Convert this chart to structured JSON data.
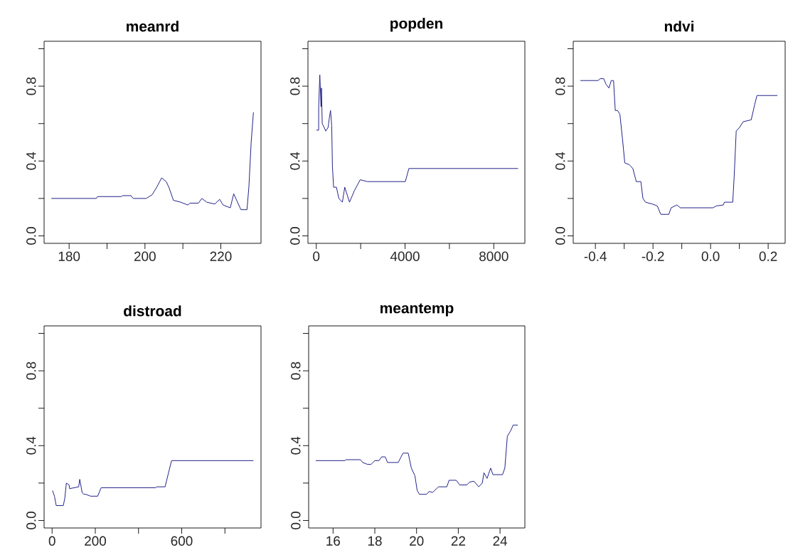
{
  "chart_data": [
    {
      "type": "line",
      "title": "meanrd",
      "color": "#22228a",
      "xlim": [
        173.4,
        230.6
      ],
      "ylim": [
        -0.04,
        1.04
      ],
      "xticks": [
        180,
        {
          "value": 190,
          "label": null
        },
        200,
        {
          "value": 210,
          "label": null
        },
        220
      ],
      "yticks": [
        {
          "value": 0,
          "label": "0.0"
        },
        {
          "value": 0.2,
          "label": null
        },
        {
          "value": 0.4,
          "label": "0.4"
        },
        {
          "value": 0.6,
          "label": null
        },
        {
          "value": 0.8,
          "label": "0.8"
        },
        {
          "value": 1.0,
          "label": null
        }
      ],
      "x": [
        175.3,
        187.2,
        187.5,
        193.8,
        194.1,
        196.3,
        196.9,
        198.8,
        200.3,
        201.9,
        203.1,
        204.4,
        205.6,
        206.3,
        207.5,
        209.4,
        211.3,
        211.9,
        214.1,
        215.0,
        216.3,
        218.4,
        219.7,
        220.6,
        222.5,
        223.4,
        224.4,
        225.3,
        226.9,
        227.4,
        228.0,
        228.6
      ],
      "values": [
        0.2,
        0.2,
        0.21,
        0.21,
        0.215,
        0.215,
        0.2,
        0.2,
        0.2,
        0.22,
        0.26,
        0.31,
        0.29,
        0.26,
        0.19,
        0.18,
        0.165,
        0.175,
        0.175,
        0.2,
        0.18,
        0.17,
        0.195,
        0.165,
        0.15,
        0.225,
        0.18,
        0.14,
        0.14,
        0.26,
        0.5,
        0.66
      ]
    },
    {
      "type": "line",
      "title": "popden",
      "color": "#22228a",
      "xlim": [
        -375,
        9400
      ],
      "ylim": [
        -0.04,
        1.04
      ],
      "xticks": [
        0,
        {
          "value": 2000,
          "label": null
        },
        4000,
        {
          "value": 6000,
          "label": null
        },
        8000
      ],
      "yticks": [
        {
          "value": 0,
          "label": "0.0"
        },
        {
          "value": 0.2,
          "label": null
        },
        {
          "value": 0.4,
          "label": "0.4"
        },
        {
          "value": 0.6,
          "label": null
        },
        {
          "value": 0.8,
          "label": "0.8"
        },
        {
          "value": 1.0,
          "label": null
        }
      ],
      "x": [
        0,
        107,
        110,
        160,
        214,
        235,
        268,
        353,
        428,
        535,
        588,
        642,
        695,
        728,
        781,
        909,
        1017,
        1177,
        1284,
        1498,
        1712,
        1980,
        2300,
        4013,
        4173,
        9095
      ],
      "values": [
        0.565,
        0.565,
        0.69,
        0.86,
        0.69,
        0.79,
        0.6,
        0.58,
        0.56,
        0.58,
        0.63,
        0.67,
        0.59,
        0.37,
        0.26,
        0.26,
        0.2,
        0.18,
        0.26,
        0.18,
        0.24,
        0.3,
        0.29,
        0.29,
        0.36,
        0.36
      ]
    },
    {
      "type": "line",
      "title": "ndvi",
      "color": "#22228a",
      "xlim": [
        -0.477,
        0.259
      ],
      "ylim": [
        -0.04,
        1.04
      ],
      "xticks": [
        -0.4,
        {
          "value": -0.3,
          "label": null
        },
        -0.2,
        {
          "value": -0.1,
          "label": null
        },
        {
          "value": 0,
          "label": "0.0"
        },
        {
          "value": 0.1,
          "label": null
        },
        0.2
      ],
      "yticks": [
        {
          "value": 0,
          "label": "0.0"
        },
        {
          "value": 0.2,
          "label": null
        },
        {
          "value": 0.4,
          "label": "0.4"
        },
        {
          "value": 0.6,
          "label": null
        },
        {
          "value": 0.8,
          "label": "0.8"
        },
        {
          "value": 1.0,
          "label": null
        }
      ],
      "x": [
        -0.452,
        -0.391,
        -0.383,
        -0.371,
        -0.363,
        -0.353,
        -0.345,
        -0.337,
        -0.331,
        -0.323,
        -0.315,
        -0.306,
        -0.298,
        -0.282,
        -0.27,
        -0.258,
        -0.242,
        -0.235,
        -0.226,
        -0.202,
        -0.185,
        -0.173,
        -0.145,
        -0.137,
        -0.117,
        -0.105,
        0.008,
        0.02,
        0.044,
        0.048,
        0.077,
        0.082,
        0.089,
        0.101,
        0.113,
        0.141,
        0.153,
        0.161,
        0.232
      ],
      "values": [
        0.83,
        0.83,
        0.84,
        0.84,
        0.81,
        0.79,
        0.83,
        0.83,
        0.67,
        0.67,
        0.65,
        0.52,
        0.39,
        0.38,
        0.36,
        0.29,
        0.29,
        0.2,
        0.18,
        0.17,
        0.16,
        0.115,
        0.115,
        0.15,
        0.165,
        0.15,
        0.15,
        0.16,
        0.165,
        0.18,
        0.18,
        0.32,
        0.56,
        0.58,
        0.61,
        0.62,
        0.7,
        0.75,
        0.75
      ]
    },
    {
      "type": "line",
      "title": "distroad",
      "color": "#22228a",
      "xlim": [
        -37,
        967
      ],
      "ylim": [
        -0.04,
        1.04
      ],
      "xticks": [
        0,
        200,
        {
          "value": 400,
          "label": null
        },
        600,
        {
          "value": 800,
          "label": null
        }
      ],
      "yticks": [
        {
          "value": 0,
          "label": "0.0"
        },
        {
          "value": 0.2,
          "label": null
        },
        {
          "value": 0.4,
          "label": "0.4"
        },
        {
          "value": 0.6,
          "label": null
        },
        {
          "value": 0.8,
          "label": "0.8"
        },
        {
          "value": 1.0,
          "label": null
        }
      ],
      "x": [
        2,
        11,
        19,
        52,
        59,
        66,
        79,
        81,
        123,
        128,
        139,
        147,
        156,
        178,
        211,
        227,
        479,
        485,
        523,
        540,
        553,
        932
      ],
      "values": [
        0.16,
        0.13,
        0.08,
        0.08,
        0.12,
        0.2,
        0.19,
        0.17,
        0.18,
        0.22,
        0.15,
        0.14,
        0.14,
        0.13,
        0.13,
        0.175,
        0.175,
        0.18,
        0.18,
        0.26,
        0.32,
        0.32
      ]
    },
    {
      "type": "line",
      "title": "meantemp",
      "color": "#22228a",
      "xlim": [
        14.83,
        25.19
      ],
      "ylim": [
        -0.04,
        1.04
      ],
      "xticks": [
        16,
        18,
        20,
        22,
        24
      ],
      "yticks": [
        {
          "value": 0,
          "label": "0.0"
        },
        {
          "value": 0.2,
          "label": null
        },
        {
          "value": 0.4,
          "label": "0.4"
        },
        {
          "value": 0.6,
          "label": null
        },
        {
          "value": 0.8,
          "label": "0.8"
        },
        {
          "value": 1.0,
          "label": null
        }
      ],
      "x": [
        15.17,
        16.57,
        16.62,
        17.31,
        17.42,
        17.65,
        17.82,
        18.0,
        18.2,
        18.33,
        18.5,
        18.61,
        19.12,
        19.35,
        19.6,
        19.75,
        19.92,
        20.03,
        20.14,
        20.48,
        20.6,
        20.77,
        21.05,
        21.45,
        21.56,
        21.9,
        22.07,
        22.41,
        22.53,
        22.75,
        22.98,
        23.15,
        23.23,
        23.38,
        23.55,
        23.66,
        24.12,
        24.23,
        24.35,
        24.51,
        24.63,
        24.85
      ],
      "values": [
        0.32,
        0.32,
        0.325,
        0.325,
        0.31,
        0.3,
        0.3,
        0.32,
        0.32,
        0.34,
        0.34,
        0.31,
        0.31,
        0.36,
        0.36,
        0.28,
        0.24,
        0.16,
        0.14,
        0.14,
        0.155,
        0.15,
        0.18,
        0.18,
        0.215,
        0.215,
        0.19,
        0.19,
        0.205,
        0.21,
        0.18,
        0.2,
        0.255,
        0.225,
        0.28,
        0.245,
        0.245,
        0.28,
        0.45,
        0.48,
        0.51,
        0.51
      ]
    }
  ]
}
